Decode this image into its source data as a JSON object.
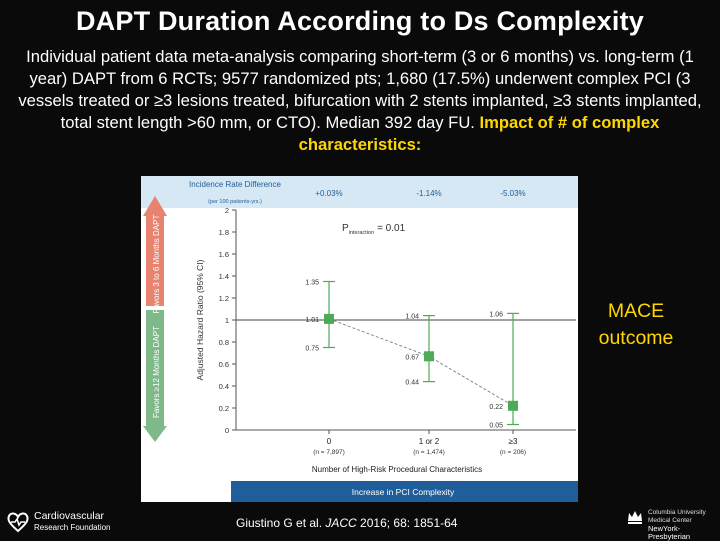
{
  "slide": {
    "title": "DAPT Duration According to Ds Complexity",
    "intro": "Individual patient data meta-analysis comparing short-term (3 or 6 months)  vs. long-term (1 year) DAPT from 6 RCTs; 9577 randomized pts; 1,680 (17.5%) underwent complex PCI (3 vessels treated or ≥3 lesions treated, bifurcation with 2 stents implanted, ≥3 stents implanted, total stent length >60 mm, or CTO). Median 392 day FU.",
    "intro_highlight": "Impact of # of complex characteristics:",
    "side_label": "MACE outcome",
    "citation_authors": "Giustino G et al. ",
    "citation_journal": "JACC",
    "citation_rest": " 2016; 68: 1851-64"
  },
  "logos": {
    "left_line1": "Cardiovascular",
    "left_line2": "Research Foundation",
    "right_line1": "Columbia University",
    "right_line2": "Medical Center",
    "right_line3": "NewYork-Presbyterian"
  },
  "colors": {
    "background": "#0a0a0a",
    "highlight": "#ffd700",
    "header_band": "#d6e8f3",
    "arrow_red": "#e8836f",
    "arrow_green": "#7fb98a",
    "marker_green": "#4daa57",
    "bottom_band": "#1f5e9a"
  },
  "chart_data": {
    "type": "scatter",
    "xlabel": "Number of High-Risk Procedural Characteristics",
    "ylabel": "Adjusted Hazard Ratio (95% CI)",
    "ylim": [
      0,
      2
    ],
    "yticks": [
      "0",
      "0.2",
      "0.4",
      "0.6",
      "0.8",
      "1",
      "1.2",
      "1.4",
      "1.6",
      "1.8",
      "2"
    ],
    "categories": [
      "0",
      "1 or 2",
      "≥3"
    ],
    "category_n": [
      "(n = 7,897)",
      "(n = 1,474)",
      "(n = 206)"
    ],
    "hr": [
      1.01,
      0.67,
      0.22
    ],
    "ci_upper": [
      1.35,
      1.04,
      1.06
    ],
    "ci_lower": [
      0.75,
      0.44,
      0.05
    ],
    "reference_line": 1,
    "incidence_header": "Incidence Rate Difference",
    "incidence_subheader": "(per 100 patients-yrs.)",
    "incidence_values": [
      "+0.03%",
      "-1.14%",
      "-5.03%"
    ],
    "p_label": "P",
    "p_subscript": "interaction",
    "p_value": "= 0.01",
    "favors_top": "Favors 3 to 6 Months DAPT",
    "favors_bottom": "Favors ≥12 Months DAPT",
    "bottom_banner": "Increase in PCI Complexity"
  }
}
